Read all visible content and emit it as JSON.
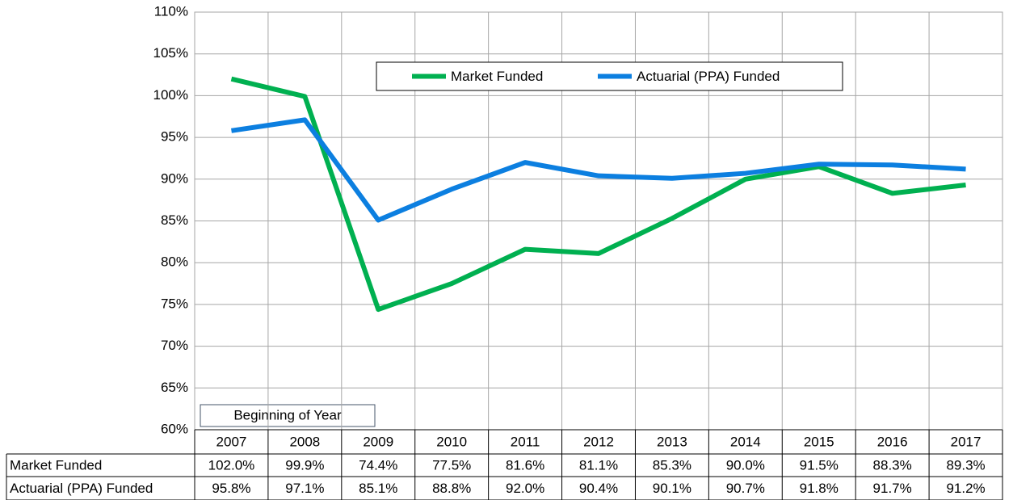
{
  "chart_data": {
    "type": "line",
    "categories": [
      "2007",
      "2008",
      "2009",
      "2010",
      "2011",
      "2012",
      "2013",
      "2014",
      "2015",
      "2016",
      "2017"
    ],
    "series": [
      {
        "name": "Market Funded",
        "color": "#00b050",
        "values": [
          102.0,
          99.9,
          74.4,
          77.5,
          81.6,
          81.1,
          85.3,
          90.0,
          91.5,
          88.3,
          89.3
        ],
        "value_labels": [
          "102.0%",
          "99.9%",
          "74.4%",
          "77.5%",
          "81.6%",
          "81.1%",
          "85.3%",
          "90.0%",
          "91.5%",
          "88.3%",
          "89.3%"
        ]
      },
      {
        "name": "Actuarial (PPA) Funded",
        "color": "#0c7fe0",
        "values": [
          95.8,
          97.1,
          85.1,
          88.8,
          92.0,
          90.4,
          90.1,
          90.7,
          91.8,
          91.7,
          91.2
        ],
        "value_labels": [
          "95.8%",
          "97.1%",
          "85.1%",
          "88.8%",
          "92.0%",
          "90.4%",
          "90.1%",
          "90.7%",
          "91.8%",
          "91.7%",
          "91.2%"
        ]
      }
    ],
    "ylim": [
      60,
      110
    ],
    "yticks": [
      {
        "value": 60,
        "label": "60%"
      },
      {
        "value": 65,
        "label": "65%"
      },
      {
        "value": 70,
        "label": "70%"
      },
      {
        "value": 75,
        "label": "75%"
      },
      {
        "value": 80,
        "label": "80%"
      },
      {
        "value": 85,
        "label": "85%"
      },
      {
        "value": 90,
        "label": "90%"
      },
      {
        "value": 95,
        "label": "95%"
      },
      {
        "value": 100,
        "label": "100%"
      },
      {
        "value": 105,
        "label": "105%"
      },
      {
        "value": 110,
        "label": "110%"
      }
    ],
    "grid": true,
    "legend": "top",
    "annotation": "Beginning of Year"
  }
}
